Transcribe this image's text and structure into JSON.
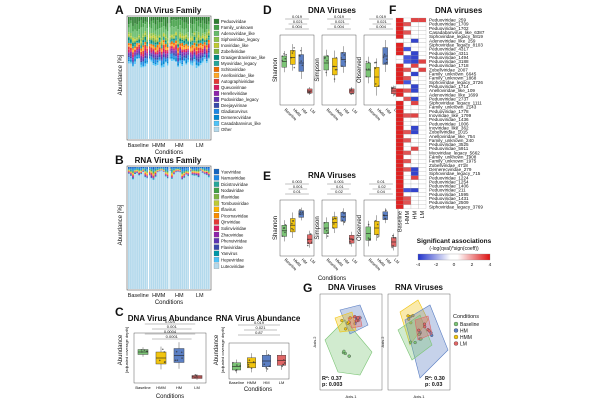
{
  "panels": {
    "A": {
      "label": "A",
      "title": "DNA Virus Family",
      "ylabel": "Abundance [%]",
      "xlabel": "Conditions",
      "groups": [
        "Baseline",
        "HMM",
        "HM",
        "LM"
      ],
      "families": [
        {
          "name": "Peduoviridae",
          "color": "#2e7d32"
        },
        {
          "name": "Family_unknown",
          "color": "#43a047"
        },
        {
          "name": "Adenoviridae_like",
          "color": "#66bb6a"
        },
        {
          "name": "Siphoviridae_legacy",
          "color": "#8bc34a"
        },
        {
          "name": "Inoviridae_like",
          "color": "#c0ca33"
        },
        {
          "name": "Zobellviridae",
          "color": "#7cb342"
        },
        {
          "name": "Graaigerdravirinae_like",
          "color": "#00897b"
        },
        {
          "name": "Myoviridae_legacy",
          "color": "#26a69a"
        },
        {
          "name": "Schitoviridae",
          "color": "#ef6c00"
        },
        {
          "name": "Anelloviridae_like",
          "color": "#ffa726"
        },
        {
          "name": "Autographiviridae",
          "color": "#e53935"
        },
        {
          "name": "Queuovirinae",
          "color": "#d81b60"
        },
        {
          "name": "Herelleviridae",
          "color": "#8e24aa"
        },
        {
          "name": "Podoviridae_legacy",
          "color": "#5e35b1"
        },
        {
          "name": "Deejayvirinae",
          "color": "#3949ab"
        },
        {
          "name": "Gladiatorvirus",
          "color": "#1e88e5"
        },
        {
          "name": "Demerecviridae",
          "color": "#0288d1"
        },
        {
          "name": "Casadabanvirus_like",
          "color": "#4fc3f7"
        },
        {
          "name": "Other",
          "color": "#b3d9ec"
        }
      ]
    },
    "B": {
      "label": "B",
      "title": "RNA Virus Family",
      "ylabel": "Abundance [%]",
      "xlabel": "Conditions",
      "groups": [
        "Baseline",
        "HMM",
        "HM",
        "LM"
      ],
      "families": [
        {
          "name": "Yueviridae",
          "color": "#1565c0"
        },
        {
          "name": "Narnaviridae",
          "color": "#1e88e5"
        },
        {
          "name": "Dicistroviridae",
          "color": "#26a69a"
        },
        {
          "name": "Nodaviridae",
          "color": "#43a047"
        },
        {
          "name": "Iflaviridae",
          "color": "#7cb342"
        },
        {
          "name": "Tombusviridae",
          "color": "#c0ca33"
        },
        {
          "name": "Iflavirus",
          "color": "#ffb300"
        },
        {
          "name": "Picornaviridae",
          "color": "#fb8c00"
        },
        {
          "name": "Qinviridae",
          "color": "#e53935"
        },
        {
          "name": "Solinviviridae",
          "color": "#d81b60"
        },
        {
          "name": "Zhaoviridae",
          "color": "#8e24aa"
        },
        {
          "name": "Phenuiviridae",
          "color": "#5e35b1"
        },
        {
          "name": "Flaviviridae",
          "color": "#3949ab"
        },
        {
          "name": "Yanvirus",
          "color": "#0097a7"
        },
        {
          "name": "Hepeviridae",
          "color": "#4fc3f7"
        },
        {
          "name": "Luteoviridae",
          "color": "#b3d9ec"
        }
      ]
    },
    "C": {
      "label": "C",
      "dna_title": "DNA Virus Abundance",
      "rna_title": "RNA Virus Abundance",
      "ylabel": "Abundance",
      "ylabel2": "[adjusted coverage depth]",
      "xlabel": "Conditions",
      "groups": [
        "Baseline",
        "HMM",
        "HM",
        "LM"
      ],
      "dna_pvals": [
        "0.024",
        "0.001",
        "0.0004",
        "0.0001"
      ],
      "rna_pvals": [
        "0.019",
        "0.021",
        "0.87"
      ]
    },
    "D": {
      "label": "D",
      "title": "DNA Viruses",
      "metrics": [
        "Shannon",
        "Simpson",
        "Observed"
      ],
      "groups": [
        "Baseline",
        "HMM",
        "HM",
        "LM"
      ],
      "pvals": [
        "0.019",
        "0.021",
        "0.004",
        "0.001",
        "0.001"
      ]
    },
    "E": {
      "label": "E",
      "title": "RNA Viruses",
      "metrics": [
        "Shannon",
        "Simpson",
        "Observed"
      ],
      "groups": [
        "Baseline",
        "HMM",
        "HM",
        "LM"
      ],
      "xlabel": "Conditions",
      "pvals": [
        "0.003",
        "0.001",
        "0.01",
        "0.02",
        "0.04",
        "ns"
      ]
    },
    "F": {
      "label": "F",
      "title": "DNA viruses",
      "columns": [
        "Baseline",
        "HMM",
        "HM",
        "LM"
      ],
      "legend_title": "Significant associations",
      "legend_subtitle": "(-log(qval)*sign(coeff))",
      "legend_ticks": [
        "-4",
        "-2",
        "0",
        "2",
        "4"
      ],
      "rows": [
        "Peduoviridae_259",
        "Peduoviridae_1709",
        "Peduoviridae_1702",
        "Casadabanvirus_like_6387",
        "Siphoviridae_legacy_5819",
        "Adenoviridae_like_259",
        "Siphoviridae_legacy_8103",
        "Peduoviridae_4317",
        "Peduoviridae_4311",
        "Peduoviridae_1494",
        "Peduoviridae_3188",
        "Peduoviridae_1718",
        "Zobellviridae_2007",
        "Family_unknown_6645",
        "Family_unknown_1868",
        "Siphoviridae_legacy_3726",
        "Peduoviridae_1714",
        "Anelloviridae_like_109",
        "Adenoviridae_like_1699",
        "Peduoviridae_2737",
        "Siphoviridae_legacy_1111",
        "Family_unknown_2143",
        "Peduoviridae_1778",
        "Inoviridae_like_1799",
        "Peduoviridae_1436",
        "Peduoviridae_1006",
        "Inoviridae_like_362",
        "Zobellviridae_1015",
        "Anelloviridae_like_754",
        "Family_unknown_240",
        "Peduoviridae_3525",
        "Peduoviridae_5911",
        "Myoviridae_legacy_5662",
        "Family_unknown_1908",
        "Family_unknown_1975",
        "Zobellviridae_4718",
        "Demerecviridae_279",
        "Siphoviridae_legacy_715",
        "Peduoviridae_1224",
        "Peduoviridae_1254",
        "Peduoviridae_1406",
        "Peduoviridae_211",
        "Peduoviridae_1595",
        "Peduoviridae_1431",
        "Peduoviridae_2509",
        "Siphoviridae_legacy_3769"
      ]
    },
    "G": {
      "label": "G",
      "dna_title": "DNA Viruses",
      "rna_title": "RNA Viruses",
      "xaxis": "Axis.1",
      "yaxis": "Axis.2",
      "dna_r2": "R²: 0.37",
      "dna_p": "p: 0.003",
      "rna_r2": "R²: 0.30",
      "rna_p": "p: 0.03",
      "legend_title": "Conditions",
      "legend": [
        {
          "name": "Baseline",
          "color": "#7cc576"
        },
        {
          "name": "HM",
          "color": "#5b7fc4"
        },
        {
          "name": "HMM",
          "color": "#f1c40f"
        },
        {
          "name": "LM",
          "color": "#e06666"
        }
      ]
    }
  },
  "chart_data": [
    {
      "type": "bar",
      "id": "A",
      "title": "DNA Virus Family",
      "ylabel": "Abundance [%]",
      "ylim": [
        0,
        100
      ],
      "series_note": "stacked 100% bars, dominated by 'Other'",
      "categories": [
        "Baseline",
        "HMM",
        "HM",
        "LM"
      ],
      "series": [
        {
          "name": "Other",
          "values": [
            68,
            67,
            66,
            65
          ]
        },
        {
          "name": "Family_unknown",
          "values": [
            6,
            6,
            7,
            7
          ]
        },
        {
          "name": "Peduoviridae",
          "values": [
            8,
            9,
            8,
            9
          ]
        }
      ]
    },
    {
      "type": "bar",
      "id": "B",
      "title": "RNA Virus Family",
      "ylabel": "Abundance [%]",
      "ylim": [
        0,
        100
      ],
      "categories": [
        "Baseline",
        "HMM",
        "HM",
        "LM"
      ],
      "series": [
        {
          "name": "Luteoviridae",
          "values": [
            93,
            94,
            93,
            92
          ]
        },
        {
          "name": "Yueviridae",
          "values": [
            3,
            2,
            3,
            3
          ]
        }
      ]
    },
    {
      "type": "bar",
      "id": "C",
      "title": "DNA Virus Abundance",
      "categories": [
        "Baseline",
        "HMM",
        "HM",
        "LM"
      ],
      "series": [
        {
          "name": "median",
          "values": [
            0.55,
            0.5,
            0.5,
            0.1
          ]
        }
      ]
    },
    {
      "type": "scatter",
      "id": "G",
      "title": "DNA Viruses / RNA Viruses",
      "xlabel": "Axis.1",
      "ylabel": "Axis.2"
    }
  ]
}
